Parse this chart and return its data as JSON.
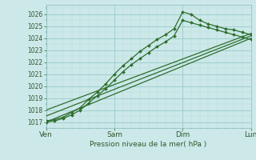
{
  "title": "Pression niveau de la mer( hPa )",
  "bg_color": "#cce8e8",
  "grid_major_color": "#99cccc",
  "grid_minor_color": "#b8dddd",
  "line_color": "#2d6e2d",
  "xlim": [
    0,
    72
  ],
  "ylim": [
    1016.5,
    1026.8
  ],
  "yticks": [
    1017,
    1018,
    1019,
    1020,
    1021,
    1022,
    1023,
    1024,
    1025,
    1026
  ],
  "xtick_positions": [
    0,
    24,
    48,
    72
  ],
  "xtick_labels": [
    "Ven",
    "Sam",
    "Dim",
    "Lun"
  ],
  "lines": [
    {
      "x": [
        0,
        3,
        6,
        9,
        12,
        15,
        18,
        21,
        24,
        27,
        30,
        33,
        36,
        39,
        42,
        45,
        48,
        51,
        54,
        57,
        60,
        63,
        66,
        69,
        72
      ],
      "y": [
        1017.1,
        1017.2,
        1017.4,
        1017.8,
        1018.2,
        1018.9,
        1019.5,
        1020.2,
        1021.0,
        1021.7,
        1022.3,
        1022.9,
        1023.4,
        1023.9,
        1024.3,
        1024.8,
        1026.2,
        1026.0,
        1025.5,
        1025.2,
        1025.0,
        1024.8,
        1024.7,
        1024.5,
        1024.3
      ],
      "style": "-",
      "marker": "D",
      "markersize": 2.0,
      "linewidth": 0.9,
      "alpha": 1.0
    },
    {
      "x": [
        0,
        3,
        6,
        9,
        12,
        15,
        18,
        21,
        24,
        27,
        30,
        33,
        36,
        39,
        42,
        45,
        48,
        51,
        54,
        57,
        60,
        63,
        66,
        69,
        72
      ],
      "y": [
        1017.0,
        1017.1,
        1017.3,
        1017.6,
        1018.0,
        1018.6,
        1019.2,
        1019.8,
        1020.5,
        1021.2,
        1021.8,
        1022.3,
        1022.8,
        1023.3,
        1023.7,
        1024.2,
        1025.5,
        1025.3,
        1025.1,
        1024.9,
        1024.7,
        1024.5,
        1024.3,
        1024.1,
        1023.9
      ],
      "style": "-",
      "marker": "D",
      "markersize": 2.0,
      "linewidth": 0.9,
      "alpha": 1.0
    },
    {
      "x": [
        0,
        72
      ],
      "y": [
        1017.0,
        1024.0
      ],
      "style": "-",
      "marker": null,
      "markersize": 0,
      "linewidth": 0.9,
      "alpha": 1.0
    },
    {
      "x": [
        0,
        72
      ],
      "y": [
        1017.5,
        1024.2
      ],
      "style": "-",
      "marker": null,
      "markersize": 0,
      "linewidth": 0.9,
      "alpha": 1.0
    },
    {
      "x": [
        0,
        72
      ],
      "y": [
        1018.0,
        1024.4
      ],
      "style": "-",
      "marker": null,
      "markersize": 0,
      "linewidth": 0.9,
      "alpha": 1.0
    }
  ]
}
